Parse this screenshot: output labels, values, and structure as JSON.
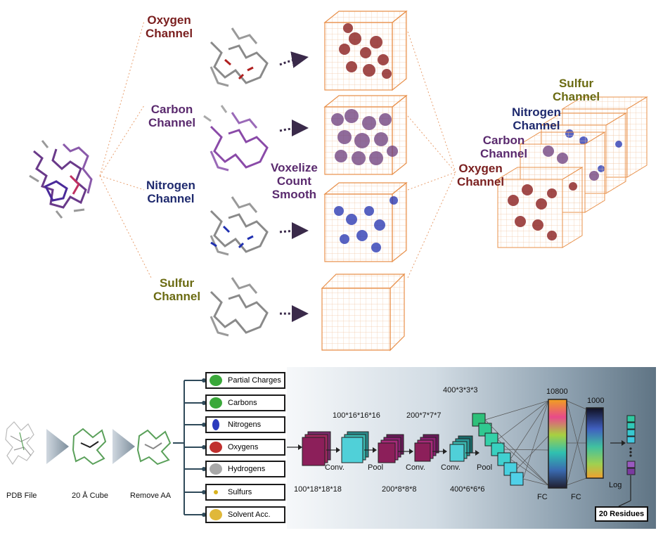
{
  "top": {
    "channels": [
      {
        "line1": "Oxygen",
        "line2": "Channel",
        "color": "#7a1f1f"
      },
      {
        "line1": "Carbon",
        "line2": "Channel",
        "color": "#5a2a6e"
      },
      {
        "line1": "Nitrogen",
        "line2": "Channel",
        "color": "#1f2a6e"
      },
      {
        "line1": "Sulfur",
        "line2": "Channel",
        "color": "#6b6b12"
      }
    ],
    "process": {
      "line1": "Voxelize",
      "line2": "Count",
      "line3": "Smooth",
      "color": "#5a2a6e"
    },
    "stack": [
      {
        "line1": "Sulfur",
        "line2": "Channel"
      },
      {
        "line1": "Nitrogen",
        "line2": "Channel"
      },
      {
        "line1": "Carbon",
        "line2": "Channel"
      },
      {
        "line1": "Oxygen",
        "line2": "Channel"
      }
    ]
  },
  "bottom": {
    "pipeline": [
      "PDB File",
      "20 Å Cube",
      "Remove AA"
    ],
    "features": [
      {
        "label": "Partial Charges",
        "icon": "partial-charges-icon",
        "color": "#3aa83a"
      },
      {
        "label": "Carbons",
        "icon": "carbons-icon",
        "color": "#3aa83a"
      },
      {
        "label": "Nitrogens",
        "icon": "nitrogens-icon",
        "color": "#2b3bbd"
      },
      {
        "label": "Oxygens",
        "icon": "oxygens-icon",
        "color": "#c0302e"
      },
      {
        "label": "Hydrogens",
        "icon": "hydrogens-icon",
        "color": "#a8a8a8"
      },
      {
        "label": "Sulfurs",
        "icon": "sulfurs-icon",
        "color": "#d8b21d"
      },
      {
        "label": "Solvent Acc.",
        "icon": "solvent-acc-icon",
        "color": "#e0b83a"
      }
    ],
    "dims": {
      "d1": "100*18*18*18",
      "d2": "100*16*16*16",
      "d3": "200*8*8*8",
      "d4": "200*7*7*7",
      "d5": "400*6*6*6",
      "d6": "400*3*3*3",
      "d7": "10800",
      "d8": "1000"
    },
    "ops": {
      "conv1": "Conv.",
      "pool1": "Pool",
      "conv2": "Conv.",
      "conv3": "Conv.",
      "pool2": "Pool",
      "fc1": "FC",
      "fc2": "FC",
      "log": "Log"
    },
    "result": "20 Residues"
  }
}
